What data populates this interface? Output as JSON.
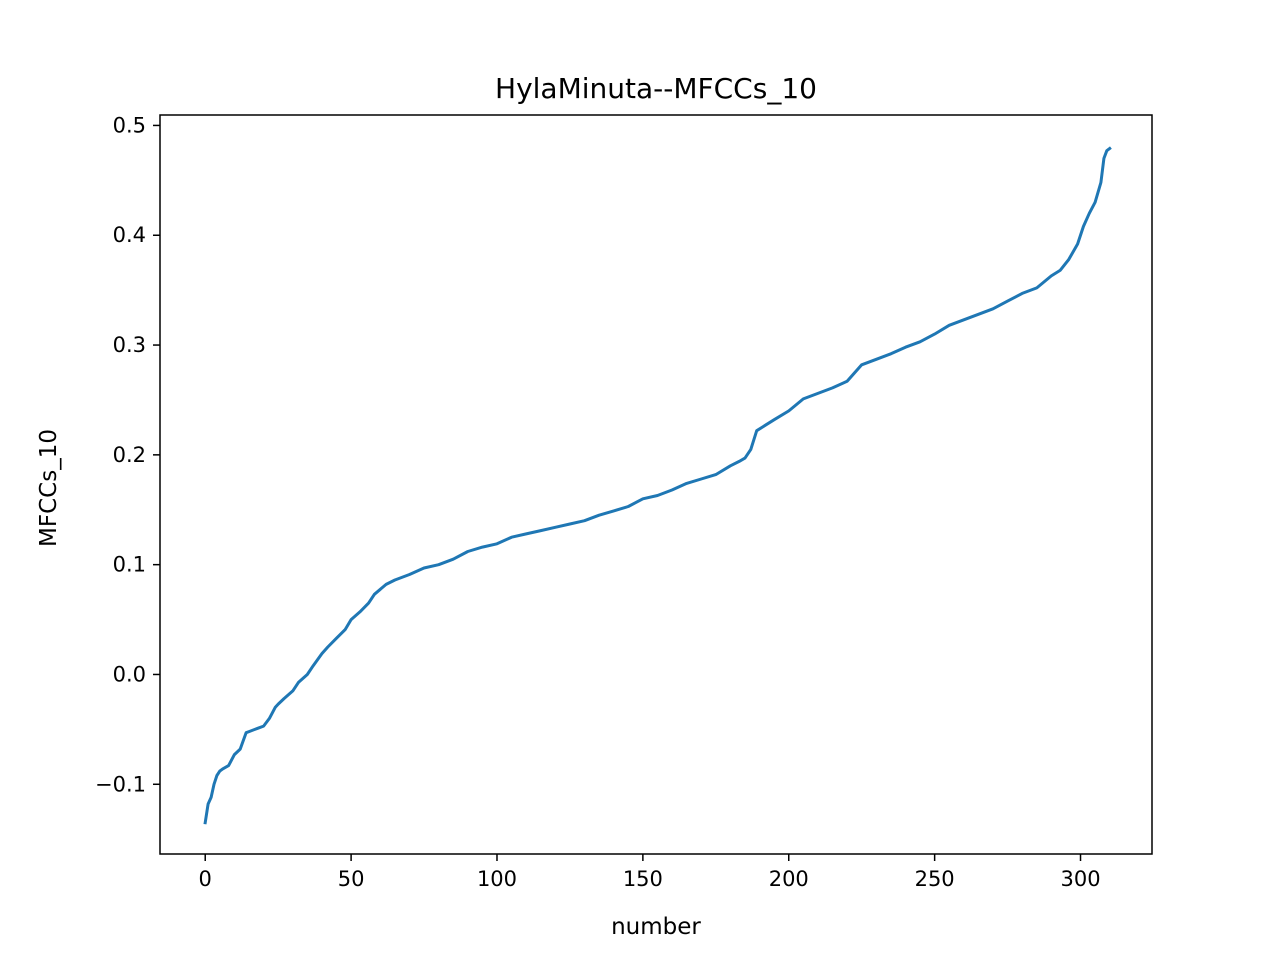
{
  "chart_data": {
    "type": "line",
    "title": "HylaMinuta--MFCCs_10",
    "xlabel": "number",
    "ylabel": "MFCCs_10",
    "xlim": [
      -15.5,
      324.5
    ],
    "ylim": [
      -0.1635,
      0.5095
    ],
    "grid": false,
    "line_color": "#1f77b4",
    "x_ticks": [
      {
        "value": 0,
        "label": "0"
      },
      {
        "value": 50,
        "label": "50"
      },
      {
        "value": 100,
        "label": "100"
      },
      {
        "value": 150,
        "label": "150"
      },
      {
        "value": 200,
        "label": "200"
      },
      {
        "value": 250,
        "label": "250"
      },
      {
        "value": 300,
        "label": "300"
      }
    ],
    "y_ticks": [
      {
        "value": -0.1,
        "label": "−0.1"
      },
      {
        "value": 0.0,
        "label": "0.0"
      },
      {
        "value": 0.1,
        "label": "0.1"
      },
      {
        "value": 0.2,
        "label": "0.2"
      },
      {
        "value": 0.3,
        "label": "0.3"
      },
      {
        "value": 0.4,
        "label": "0.4"
      },
      {
        "value": 0.5,
        "label": "0.5"
      }
    ],
    "series": [
      {
        "x": [
          0,
          1,
          2,
          3,
          4,
          5,
          6,
          8,
          10,
          12,
          14,
          15,
          18,
          20,
          22,
          24,
          25,
          27,
          30,
          32,
          35,
          37,
          40,
          42,
          45,
          48,
          50,
          53,
          56,
          58,
          62,
          65,
          70,
          75,
          80,
          85,
          90,
          95,
          100,
          105,
          110,
          115,
          120,
          125,
          130,
          135,
          140,
          145,
          150,
          155,
          160,
          165,
          170,
          175,
          180,
          183,
          185,
          187,
          189,
          192,
          195,
          200,
          205,
          210,
          215,
          220,
          225,
          230,
          235,
          240,
          245,
          250,
          255,
          260,
          265,
          270,
          275,
          280,
          285,
          290,
          293,
          296,
          299,
          301,
          303,
          305,
          307,
          308,
          309,
          310
        ],
        "y": [
          -0.135,
          -0.118,
          -0.112,
          -0.1,
          -0.092,
          -0.088,
          -0.086,
          -0.083,
          -0.073,
          -0.068,
          -0.053,
          -0.052,
          -0.049,
          -0.047,
          -0.04,
          -0.03,
          -0.027,
          -0.022,
          -0.015,
          -0.007,
          0.0,
          0.008,
          0.019,
          0.025,
          0.033,
          0.041,
          0.05,
          0.057,
          0.065,
          0.073,
          0.082,
          0.086,
          0.091,
          0.097,
          0.1,
          0.105,
          0.112,
          0.116,
          0.119,
          0.125,
          0.128,
          0.131,
          0.134,
          0.137,
          0.14,
          0.145,
          0.149,
          0.153,
          0.16,
          0.163,
          0.168,
          0.174,
          0.178,
          0.182,
          0.19,
          0.194,
          0.197,
          0.205,
          0.222,
          0.227,
          0.232,
          0.24,
          0.251,
          0.256,
          0.261,
          0.267,
          0.282,
          0.287,
          0.292,
          0.298,
          0.303,
          0.31,
          0.318,
          0.323,
          0.328,
          0.333,
          0.34,
          0.347,
          0.352,
          0.363,
          0.368,
          0.378,
          0.392,
          0.408,
          0.42,
          0.43,
          0.448,
          0.47,
          0.477,
          0.479
        ]
      }
    ]
  }
}
